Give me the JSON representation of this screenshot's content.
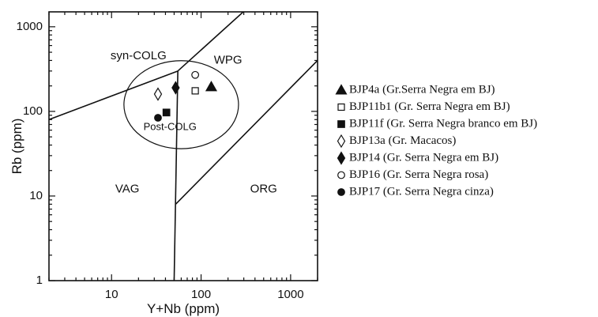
{
  "chart_data": {
    "type": "scatter",
    "xlabel": "Y+Nb (ppm)",
    "ylabel": "Rb (ppm)",
    "x_scale": "log",
    "y_scale": "log",
    "xlim": [
      2,
      2000
    ],
    "ylim": [
      1,
      1500
    ],
    "x_ticks": [
      {
        "value": 10,
        "label": "10"
      },
      {
        "value": 100,
        "label": "100"
      },
      {
        "value": 1000,
        "label": "1000"
      }
    ],
    "y_ticks": [
      {
        "value": 1,
        "label": "1"
      },
      {
        "value": 10,
        "label": "10"
      },
      {
        "value": 100,
        "label": "100"
      },
      {
        "value": 1000,
        "label": "1000"
      }
    ],
    "grid": false,
    "legend_position": "right",
    "fields": [
      {
        "name": "syn-COLG",
        "x": 20,
        "y": 450
      },
      {
        "name": "WPG",
        "x": 200,
        "y": 400
      },
      {
        "name": "VAG",
        "x": 15,
        "y": 12
      },
      {
        "name": "ORG",
        "x": 500,
        "y": 12
      },
      {
        "name": "Post-COLG",
        "x": 45,
        "y": 65
      }
    ],
    "boundaries": [
      {
        "name": "syn-COLG / VAG",
        "points": [
          [
            2,
            80
          ],
          [
            55,
            300
          ]
        ]
      },
      {
        "name": "syn-COLG / WPG",
        "points": [
          [
            55,
            300
          ],
          [
            400,
            2000
          ]
        ]
      },
      {
        "name": "VAG / WPG-ORG",
        "points": [
          [
            55,
            300
          ],
          [
            50,
            1
          ]
        ]
      },
      {
        "name": "WPG / ORG",
        "points": [
          [
            52,
            8
          ],
          [
            2000,
            400
          ]
        ]
      }
    ],
    "post_colg_ellipse": {
      "cx": 60,
      "cy": 120,
      "rx_decades": 0.64,
      "ry_decades": 0.52
    },
    "series": [
      {
        "name": "BJP4a (Gr.Serra Negra em BJ)",
        "marker": "triangle-filled",
        "points": [
          [
            130,
            195
          ]
        ]
      },
      {
        "name": "BJP11b1 (Gr. Serra Negra em BJ)",
        "marker": "square-open",
        "points": [
          [
            86,
            175
          ]
        ]
      },
      {
        "name": "BJP11f (Gr. Serra Negra branco em BJ)",
        "marker": "square-filled",
        "points": [
          [
            41,
            97
          ]
        ]
      },
      {
        "name": "BJP13a (Gr. Macacos)",
        "marker": "diamond-open",
        "points": [
          [
            33,
            160
          ]
        ]
      },
      {
        "name": "BJP14 (Gr. Serra Negra em BJ)",
        "marker": "diamond-filled",
        "points": [
          [
            52,
            190
          ]
        ]
      },
      {
        "name": "BJP16 (Gr. Serra Negra rosa)",
        "marker": "circle-open",
        "points": [
          [
            86,
            270
          ]
        ]
      },
      {
        "name": "BJP17 (Gr. Serra Negra cinza)",
        "marker": "circle-filled",
        "points": [
          [
            33,
            84
          ]
        ]
      }
    ]
  }
}
